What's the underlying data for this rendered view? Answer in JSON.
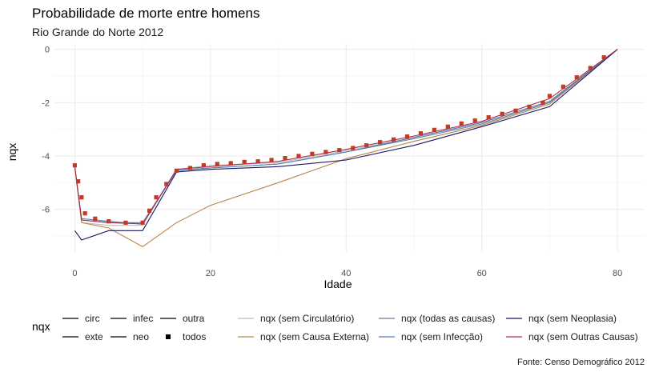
{
  "chart_data": {
    "type": "line",
    "title": "Probabilidade de morte entre homens",
    "subtitle": "Rio Grande do Norte 2012",
    "xlabel": "Idade",
    "ylabel": "nqx",
    "caption": "Fonte: Censo Demográfico 2012",
    "xlim": [
      -3,
      84
    ],
    "ylim": [
      -7.6,
      0.2
    ],
    "x_ticks": [
      0,
      20,
      40,
      60,
      80
    ],
    "y_ticks": [
      0,
      -2,
      -4,
      -6
    ],
    "grid": true,
    "legend_position": "bottom",
    "legend_title": "nqx",
    "legend_linetype": [
      {
        "label": "circ",
        "glyph": "line"
      },
      {
        "label": "exte",
        "glyph": "line"
      },
      {
        "label": "infec",
        "glyph": "line"
      },
      {
        "label": "neo",
        "glyph": "line"
      },
      {
        "label": "outra",
        "glyph": "line"
      },
      {
        "label": "todos",
        "glyph": "point"
      }
    ],
    "legend_color": [
      {
        "label": "nqx (sem Circulatório)",
        "color": "#bdbdbd"
      },
      {
        "label": "nqx (sem Causa Externa)",
        "color": "#b8854a"
      },
      {
        "label": "nqx (todas as causas)",
        "color": "#6b7f92"
      },
      {
        "label": "nqx (sem Infecção)",
        "color": "#4c7fbf"
      },
      {
        "label": "nqx (sem Neoplasia)",
        "color": "#1b1464"
      },
      {
        "label": "nqx (sem Outras Causas)",
        "color": "#b22d3a"
      }
    ],
    "series": [
      {
        "name": "nqx (sem Circulatório)",
        "color": "#bdbdbd",
        "x": [
          0,
          1,
          5,
          10,
          15,
          20,
          30,
          40,
          50,
          60,
          70,
          80
        ],
        "y": [
          -4.4,
          -6.5,
          -6.6,
          -6.6,
          -4.5,
          -4.35,
          -4.25,
          -3.8,
          -3.3,
          -2.75,
          -1.95,
          0
        ]
      },
      {
        "name": "nqx (sem Causa Externa)",
        "color": "#b8854a",
        "x": [
          0,
          1,
          5,
          10,
          15,
          20,
          30,
          40,
          50,
          60,
          70,
          80
        ],
        "y": [
          -4.4,
          -6.5,
          -6.7,
          -7.4,
          -6.5,
          -5.85,
          -5.0,
          -4.1,
          -3.45,
          -2.85,
          -2.05,
          0
        ]
      },
      {
        "name": "nqx (todas as causas)",
        "color": "#6b7f92",
        "x": [
          0,
          1,
          5,
          10,
          15,
          20,
          30,
          40,
          50,
          60,
          70,
          80
        ],
        "y": [
          -4.4,
          -6.4,
          -6.5,
          -6.5,
          -4.55,
          -4.45,
          -4.3,
          -3.85,
          -3.35,
          -2.8,
          -2.0,
          0
        ]
      },
      {
        "name": "nqx (sem Infecção)",
        "color": "#4c7fbf",
        "x": [
          0,
          1,
          5,
          10,
          15,
          20,
          30,
          40,
          50,
          60,
          70,
          80
        ],
        "y": [
          -4.4,
          -6.35,
          -6.45,
          -6.55,
          -4.55,
          -4.45,
          -4.3,
          -3.85,
          -3.3,
          -2.75,
          -1.95,
          0
        ]
      },
      {
        "name": "nqx (sem Neoplasia)",
        "color": "#1b1464",
        "x": [
          0,
          1,
          5,
          10,
          15,
          20,
          30,
          40,
          50,
          60,
          70,
          80
        ],
        "y": [
          -6.8,
          -7.15,
          -6.8,
          -6.8,
          -4.6,
          -4.5,
          -4.4,
          -4.15,
          -3.6,
          -2.9,
          -2.15,
          0
        ]
      },
      {
        "name": "nqx (sem Outras Causas)",
        "color": "#b22d3a",
        "x": [
          0,
          1,
          5,
          10,
          15,
          20,
          30,
          40,
          50,
          60,
          70,
          80
        ],
        "y": [
          -4.4,
          -6.4,
          -6.5,
          -6.55,
          -4.5,
          -4.4,
          -4.2,
          -3.75,
          -3.25,
          -2.7,
          -1.85,
          0
        ]
      }
    ],
    "points_todos": {
      "color": "#c0392b",
      "x": [
        0,
        0.5,
        1,
        1.5,
        3,
        5,
        7.5,
        10,
        11,
        12,
        13.5,
        15,
        17,
        19,
        21,
        23,
        25,
        27,
        29,
        31,
        33,
        35,
        37,
        39,
        41,
        43,
        45,
        47,
        49,
        51,
        53,
        55,
        57,
        59,
        61,
        63,
        65,
        67,
        69,
        70,
        72,
        74,
        76,
        78
      ],
      "y": [
        -4.35,
        -4.95,
        -5.55,
        -6.15,
        -6.35,
        -6.45,
        -6.5,
        -6.5,
        -6.05,
        -5.55,
        -5.05,
        -4.55,
        -4.45,
        -4.35,
        -4.3,
        -4.27,
        -4.22,
        -4.2,
        -4.15,
        -4.08,
        -4.0,
        -3.92,
        -3.85,
        -3.78,
        -3.7,
        -3.6,
        -3.48,
        -3.38,
        -3.27,
        -3.15,
        -3.02,
        -2.9,
        -2.78,
        -2.67,
        -2.55,
        -2.42,
        -2.3,
        -2.15,
        -2.0,
        -1.75,
        -1.4,
        -1.05,
        -0.7,
        -0.3
      ]
    }
  }
}
